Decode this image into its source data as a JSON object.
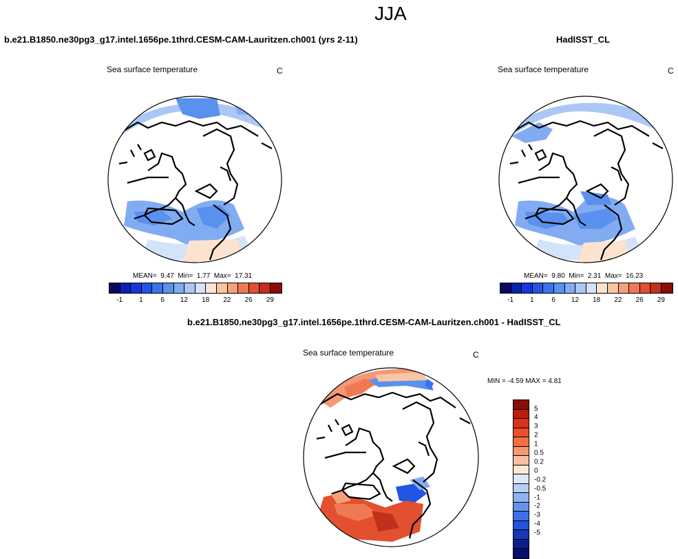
{
  "title": "JJA",
  "panels": {
    "model": {
      "title": "b.e21.B1850.ne30pg3_g17.intel.1656pe.1thrd.CESM-CAM-Lauritzen.ch001 (yrs 2-11)",
      "variable": "Sea surface temperature",
      "units": "C",
      "stats": {
        "mean_label": "MEAN=",
        "mean": "9.47",
        "min_label": "Min=",
        "min": "1.77",
        "max_label": "Max=",
        "max": "17.31"
      }
    },
    "obs": {
      "title": "HadISST_CL",
      "variable": "Sea surface temperature",
      "units": "C",
      "stats": {
        "mean_label": "MEAN=",
        "mean": "9.80",
        "min_label": "Min=",
        "min": "2.31",
        "max_label": "Max=",
        "max": "16.23"
      }
    },
    "diff": {
      "title": "b.e21.B1850.ne30pg3_g17.intel.1656pe.1thrd.CESM-CAM-Lauritzen.ch001 - HadISST_CL",
      "variable": "Sea surface temperature",
      "units": "C",
      "stats_text": "MIN =  -4.59 MAX =  4.81"
    }
  },
  "colorbar_abs": {
    "colors": [
      "#08086b",
      "#0b22b0",
      "#1537d9",
      "#2255e6",
      "#3b73ea",
      "#5a90ee",
      "#82acf2",
      "#aac7f6",
      "#d3e3fa",
      "#fbe3cf",
      "#f8c6a6",
      "#f4a07b",
      "#ef7955",
      "#e2502f",
      "#c1301b",
      "#8a0e07"
    ],
    "ticks": [
      "-1",
      "1",
      "6",
      "12",
      "18",
      "22",
      "26",
      "29"
    ]
  },
  "colorbar_diff": {
    "colors": [
      "#8a0e07",
      "#b81e0e",
      "#d93216",
      "#ea4f28",
      "#f07043",
      "#f49875",
      "#f8bfa2",
      "#fce7d6",
      "#dde9fb",
      "#b7cff7",
      "#8eb2f2",
      "#6592ec",
      "#3f6fe6",
      "#2452dc",
      "#1637b8",
      "#0b1f8c",
      "#06106a"
    ],
    "labels": [
      "5",
      "4",
      "3",
      "2",
      "1",
      "0.5",
      "0.2",
      "0",
      "-0.2",
      "-0.5",
      "-1",
      "-2",
      "-3",
      "-4",
      "-5"
    ]
  }
}
